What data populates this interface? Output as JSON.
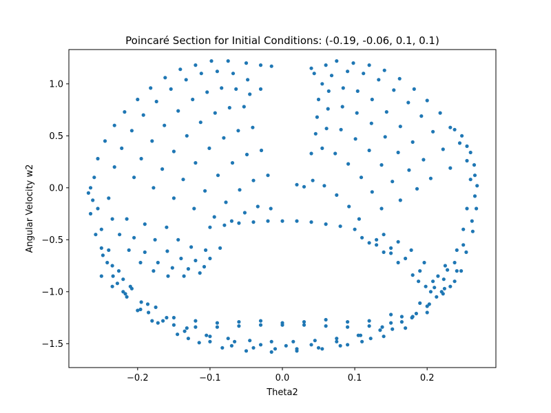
{
  "chart_data": {
    "type": "scatter",
    "title": "Poincaré Section for Initial Conditions: (-0.19, -0.06, 0.1, 0.1)",
    "xlabel": "Theta2",
    "ylabel": "Angular Velocity w2",
    "xlim": [
      -0.295,
      0.295
    ],
    "ylim": [
      -1.73,
      1.33
    ],
    "xticks": [
      -0.2,
      -0.1,
      0.0,
      0.1,
      0.2
    ],
    "xtick_labels": [
      "−0.2",
      "−0.1",
      "0.0",
      "0.1",
      "0.2"
    ],
    "yticks": [
      -1.5,
      -1.0,
      -0.5,
      0.0,
      0.5,
      1.0
    ],
    "ytick_labels": [
      "−1.5",
      "−1.0",
      "−0.5",
      "0.0",
      "0.5",
      "1.0"
    ],
    "grid": false,
    "legend": "none",
    "marker_color": "#1f77b4",
    "points": [
      [
        -0.268,
        -0.05
      ],
      [
        -0.265,
        -0.25
      ],
      [
        -0.258,
        -0.45
      ],
      [
        -0.248,
        -0.65
      ],
      [
        -0.234,
        -0.85
      ],
      [
        -0.217,
        -1.02
      ],
      [
        -0.196,
        -1.17
      ],
      [
        -0.172,
        -1.3
      ],
      [
        -0.145,
        -1.41
      ],
      [
        -0.115,
        -1.49
      ],
      [
        -0.083,
        -1.54
      ],
      [
        -0.05,
        -1.57
      ],
      [
        -0.015,
        -1.58
      ],
      [
        0.02,
        -1.57
      ],
      [
        0.055,
        -1.55
      ],
      [
        0.09,
        -1.51
      ],
      [
        0.122,
        -1.45
      ],
      [
        0.152,
        -1.36
      ],
      [
        0.179,
        -1.25
      ],
      [
        0.203,
        -1.12
      ],
      [
        0.224,
        -0.97
      ],
      [
        0.241,
        -0.8
      ],
      [
        0.254,
        -0.62
      ],
      [
        0.263,
        -0.42
      ],
      [
        0.268,
        -0.2
      ],
      [
        0.269,
        0.02
      ],
      [
        0.265,
        0.22
      ],
      [
        0.255,
        0.4
      ],
      [
        0.238,
        0.56
      ],
      [
        -0.255,
        -0.2
      ],
      [
        -0.25,
        -0.4
      ],
      [
        -0.24,
        -0.6
      ],
      [
        -0.226,
        -0.8
      ],
      [
        -0.208,
        -0.97
      ],
      [
        -0.186,
        -1.12
      ],
      [
        -0.16,
        -1.25
      ],
      [
        -0.132,
        -1.35
      ],
      [
        -0.1,
        -1.43
      ],
      [
        -0.066,
        -1.48
      ],
      [
        -0.03,
        -1.51
      ],
      [
        0.005,
        -1.52
      ],
      [
        0.04,
        -1.51
      ],
      [
        0.075,
        -1.48
      ],
      [
        0.108,
        -1.42
      ],
      [
        0.138,
        -1.34
      ],
      [
        0.165,
        -1.24
      ],
      [
        0.19,
        -1.11
      ],
      [
        0.21,
        -0.96
      ],
      [
        0.228,
        -0.79
      ],
      [
        0.241,
        -0.6
      ],
      [
        0.25,
        -0.4
      ],
      [
        0.255,
        -0.2
      ],
      [
        -0.22,
        -1.0
      ],
      [
        -0.2,
        -1.18
      ],
      [
        -0.18,
        -1.28
      ],
      [
        -0.15,
        -1.32
      ],
      [
        -0.12,
        -1.34
      ],
      [
        -0.09,
        -1.34
      ],
      [
        -0.06,
        -1.33
      ],
      [
        -0.03,
        -1.32
      ],
      [
        0.0,
        -1.32
      ],
      [
        0.03,
        -1.32
      ],
      [
        0.06,
        -1.33
      ],
      [
        0.09,
        -1.34
      ],
      [
        0.12,
        -1.33
      ],
      [
        0.15,
        -1.3
      ],
      [
        0.18,
        -1.24
      ],
      [
        0.2,
        -1.14
      ],
      [
        0.22,
        -1.0
      ],
      [
        -0.185,
        -1.2
      ],
      [
        -0.165,
        -1.28
      ],
      [
        -0.135,
        -1.38
      ],
      [
        -0.105,
        -1.42
      ],
      [
        -0.075,
        -1.45
      ],
      [
        -0.045,
        -1.47
      ],
      [
        -0.015,
        -1.48
      ],
      [
        0.015,
        -1.48
      ],
      [
        0.045,
        -1.47
      ],
      [
        0.075,
        -1.45
      ],
      [
        0.105,
        -1.42
      ],
      [
        0.135,
        -1.37
      ],
      [
        0.165,
        -1.29
      ],
      [
        0.185,
        -1.21
      ],
      [
        -0.26,
        0.1
      ],
      [
        -0.255,
        0.28
      ],
      [
        -0.245,
        0.45
      ],
      [
        -0.232,
        0.6
      ],
      [
        -0.218,
        0.73
      ],
      [
        -0.2,
        0.85
      ],
      [
        -0.182,
        0.96
      ],
      [
        -0.162,
        1.06
      ],
      [
        -0.141,
        1.14
      ],
      [
        -0.12,
        1.18
      ],
      [
        -0.098,
        1.22
      ],
      [
        -0.075,
        1.22
      ],
      [
        -0.05,
        1.2
      ],
      [
        -0.03,
        1.18
      ],
      [
        -0.015,
        1.17
      ],
      [
        -0.232,
        0.2
      ],
      [
        -0.222,
        0.38
      ],
      [
        -0.208,
        0.55
      ],
      [
        -0.192,
        0.7
      ],
      [
        -0.174,
        0.83
      ],
      [
        -0.154,
        0.95
      ],
      [
        -0.133,
        1.04
      ],
      [
        -0.112,
        1.1
      ],
      [
        -0.09,
        1.12
      ],
      [
        -0.068,
        1.1
      ],
      [
        -0.048,
        1.04
      ],
      [
        -0.03,
        0.95
      ],
      [
        -0.205,
        0.1
      ],
      [
        -0.195,
        0.28
      ],
      [
        -0.18,
        0.45
      ],
      [
        -0.163,
        0.6
      ],
      [
        -0.144,
        0.74
      ],
      [
        -0.124,
        0.85
      ],
      [
        -0.104,
        0.92
      ],
      [
        -0.084,
        0.96
      ],
      [
        -0.064,
        0.95
      ],
      [
        -0.045,
        0.9
      ],
      [
        -0.178,
        0.0
      ],
      [
        -0.166,
        0.18
      ],
      [
        -0.15,
        0.35
      ],
      [
        -0.132,
        0.5
      ],
      [
        -0.113,
        0.63
      ],
      [
        -0.093,
        0.72
      ],
      [
        -0.073,
        0.77
      ],
      [
        -0.053,
        0.78
      ],
      [
        -0.15,
        -0.1
      ],
      [
        -0.137,
        0.08
      ],
      [
        -0.12,
        0.24
      ],
      [
        -0.101,
        0.38
      ],
      [
        -0.081,
        0.48
      ],
      [
        -0.061,
        0.55
      ],
      [
        -0.041,
        0.58
      ],
      [
        -0.122,
        -0.2
      ],
      [
        -0.107,
        -0.03
      ],
      [
        -0.089,
        0.12
      ],
      [
        -0.069,
        0.24
      ],
      [
        -0.049,
        0.32
      ],
      [
        -0.029,
        0.36
      ],
      [
        -0.094,
        -0.28
      ],
      [
        -0.078,
        -0.14
      ],
      [
        -0.059,
        -0.02
      ],
      [
        -0.04,
        0.07
      ],
      [
        -0.02,
        0.12
      ],
      [
        -0.07,
        -0.32
      ],
      [
        -0.052,
        -0.24
      ],
      [
        -0.034,
        -0.18
      ],
      [
        -0.016,
        -0.2
      ],
      [
        -0.24,
        -0.1
      ],
      [
        -0.235,
        -0.3
      ],
      [
        -0.225,
        -0.45
      ],
      [
        -0.212,
        -0.6
      ],
      [
        -0.196,
        -0.72
      ],
      [
        -0.178,
        -0.8
      ],
      [
        -0.158,
        -0.85
      ],
      [
        -0.136,
        -0.85
      ],
      [
        -0.114,
        -0.82
      ],
      [
        -0.215,
        -0.3
      ],
      [
        -0.205,
        -0.48
      ],
      [
        -0.19,
        -0.62
      ],
      [
        -0.172,
        -0.72
      ],
      [
        -0.152,
        -0.77
      ],
      [
        -0.13,
        -0.78
      ],
      [
        -0.108,
        -0.76
      ],
      [
        -0.19,
        -0.35
      ],
      [
        -0.176,
        -0.5
      ],
      [
        -0.159,
        -0.61
      ],
      [
        -0.14,
        -0.68
      ],
      [
        -0.12,
        -0.7
      ],
      [
        -0.1,
        -0.68
      ],
      [
        -0.16,
        -0.38
      ],
      [
        -0.144,
        -0.5
      ],
      [
        -0.126,
        -0.57
      ],
      [
        -0.106,
        -0.6
      ],
      [
        -0.086,
        -0.58
      ],
      [
        -0.25,
        -0.85
      ],
      [
        -0.235,
        -0.95
      ],
      [
        -0.215,
        -1.05
      ],
      [
        -0.195,
        -1.1
      ],
      [
        -0.175,
        -1.15
      ],
      [
        -0.22,
        -0.88
      ],
      [
        -0.21,
        -0.95
      ],
      [
        -0.235,
        -0.75
      ],
      [
        -0.1,
        -0.38
      ],
      [
        -0.08,
        -0.36
      ],
      [
        -0.06,
        -0.34
      ],
      [
        -0.04,
        -0.33
      ],
      [
        -0.02,
        -0.32
      ],
      [
        0.0,
        -0.32
      ],
      [
        0.02,
        -0.32
      ],
      [
        0.04,
        -0.33
      ],
      [
        0.06,
        -0.35
      ],
      [
        0.08,
        -0.37
      ],
      [
        0.1,
        -0.4
      ],
      [
        0.04,
        1.15
      ],
      [
        0.044,
        1.1
      ],
      [
        0.06,
        1.18
      ],
      [
        0.075,
        1.22
      ],
      [
        0.098,
        1.2
      ],
      [
        0.12,
        1.18
      ],
      [
        0.141,
        1.13
      ],
      [
        0.162,
        1.05
      ],
      [
        0.182,
        0.95
      ],
      [
        0.2,
        0.84
      ],
      [
        0.218,
        0.72
      ],
      [
        0.232,
        0.58
      ],
      [
        0.245,
        0.43
      ],
      [
        0.255,
        0.26
      ],
      [
        0.26,
        0.08
      ],
      [
        0.055,
        1.0
      ],
      [
        0.068,
        1.08
      ],
      [
        0.09,
        1.12
      ],
      [
        0.112,
        1.1
      ],
      [
        0.133,
        1.04
      ],
      [
        0.154,
        0.94
      ],
      [
        0.174,
        0.82
      ],
      [
        0.192,
        0.69
      ],
      [
        0.208,
        0.54
      ],
      [
        0.222,
        0.37
      ],
      [
        0.232,
        0.19
      ],
      [
        0.05,
        0.85
      ],
      [
        0.064,
        0.93
      ],
      [
        0.084,
        0.96
      ],
      [
        0.104,
        0.93
      ],
      [
        0.124,
        0.85
      ],
      [
        0.144,
        0.73
      ],
      [
        0.163,
        0.59
      ],
      [
        0.18,
        0.44
      ],
      [
        0.195,
        0.27
      ],
      [
        0.205,
        0.09
      ],
      [
        0.048,
        0.68
      ],
      [
        0.063,
        0.76
      ],
      [
        0.083,
        0.78
      ],
      [
        0.103,
        0.72
      ],
      [
        0.123,
        0.62
      ],
      [
        0.142,
        0.49
      ],
      [
        0.16,
        0.34
      ],
      [
        0.175,
        0.17
      ],
      [
        0.186,
        -0.01
      ],
      [
        0.046,
        0.52
      ],
      [
        0.061,
        0.57
      ],
      [
        0.081,
        0.56
      ],
      [
        0.101,
        0.47
      ],
      [
        0.12,
        0.36
      ],
      [
        0.137,
        0.22
      ],
      [
        0.152,
        0.06
      ],
      [
        0.163,
        -0.12
      ],
      [
        0.04,
        0.33
      ],
      [
        0.055,
        0.38
      ],
      [
        0.073,
        0.33
      ],
      [
        0.091,
        0.23
      ],
      [
        0.109,
        0.1
      ],
      [
        0.124,
        -0.04
      ],
      [
        0.137,
        -0.2
      ],
      [
        0.02,
        0.03
      ],
      [
        0.03,
        0.01
      ],
      [
        0.042,
        0.07
      ],
      [
        0.058,
        0.02
      ],
      [
        0.075,
        -0.07
      ],
      [
        0.092,
        -0.18
      ],
      [
        0.106,
        -0.3
      ],
      [
        0.14,
        -0.45
      ],
      [
        0.16,
        -0.52
      ],
      [
        0.178,
        -0.6
      ],
      [
        0.196,
        -0.72
      ],
      [
        0.215,
        -0.85
      ],
      [
        0.232,
        -0.95
      ],
      [
        0.247,
        -0.8
      ],
      [
        0.13,
        -0.5
      ],
      [
        0.15,
        -0.58
      ],
      [
        0.17,
        -0.68
      ],
      [
        0.19,
        -0.8
      ],
      [
        0.208,
        -0.9
      ],
      [
        0.225,
        -0.75
      ],
      [
        0.12,
        -0.53
      ],
      [
        0.14,
        -0.62
      ],
      [
        0.16,
        -0.72
      ],
      [
        0.18,
        -0.84
      ],
      [
        0.198,
        -0.95
      ],
      [
        0.213,
        -1.05
      ],
      [
        0.11,
        -0.48
      ],
      [
        0.13,
        -0.55
      ],
      [
        0.15,
        -0.63
      ],
      [
        0.188,
        -0.9
      ],
      [
        0.205,
        -1.0
      ],
      [
        0.222,
        -1.02
      ],
      [
        0.238,
        -0.9
      ],
      [
        -0.15,
        -1.25
      ],
      [
        -0.12,
        -1.28
      ],
      [
        -0.09,
        -1.3
      ],
      [
        -0.06,
        -1.29
      ],
      [
        -0.03,
        -1.28
      ],
      [
        0.0,
        -1.3
      ],
      [
        0.03,
        -1.29
      ],
      [
        0.06,
        -1.27
      ],
      [
        0.09,
        -1.29
      ],
      [
        0.12,
        -1.28
      ],
      [
        0.15,
        -1.22
      ],
      [
        -0.13,
        -1.45
      ],
      [
        -0.1,
        -1.48
      ],
      [
        -0.07,
        -1.52
      ],
      [
        -0.04,
        -1.54
      ],
      [
        -0.01,
        -1.55
      ],
      [
        0.02,
        -1.55
      ],
      [
        0.05,
        -1.54
      ],
      [
        0.08,
        -1.52
      ],
      [
        0.11,
        -1.48
      ],
      [
        0.14,
        -1.43
      ],
      [
        0.17,
        -1.35
      ],
      [
        0.2,
        -1.2
      ],
      [
        -0.265,
        0.0
      ],
      [
        -0.262,
        -0.12
      ],
      [
        -0.25,
        -0.58
      ],
      [
        -0.242,
        -0.72
      ],
      [
        -0.228,
        -0.92
      ],
      [
        0.266,
        -0.08
      ],
      [
        0.262,
        -0.32
      ],
      [
        0.25,
        -0.55
      ],
      [
        0.238,
        -0.72
      ],
      [
        0.223,
        -0.88
      ],
      [
        0.266,
        0.12
      ],
      [
        0.26,
        0.34
      ],
      [
        0.248,
        0.5
      ]
    ]
  }
}
